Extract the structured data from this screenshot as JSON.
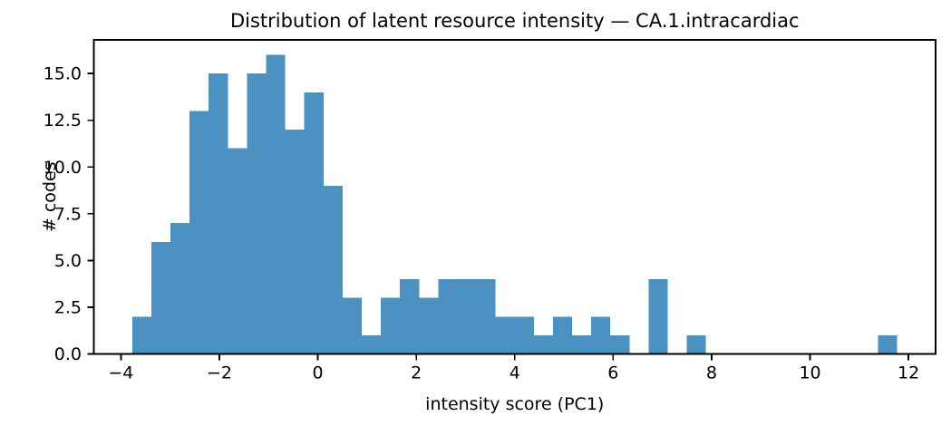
{
  "chart_data": {
    "type": "bar",
    "subtype": "histogram",
    "title": "Distribution of latent resource intensity — CA.1.intracardiac",
    "xlabel": "intensity score (PC1)",
    "ylabel": "# codes",
    "bar_color": "#4b92c3",
    "axis_color": "#000000",
    "background_color": "#ffffff",
    "grid": false,
    "legend": null,
    "bins": {
      "start": -3.77,
      "width": 0.3885,
      "counts": [
        2,
        6,
        7,
        13,
        15,
        11,
        15,
        16,
        12,
        14,
        9,
        3,
        1,
        3,
        4,
        3,
        4,
        4,
        4,
        2,
        2,
        1,
        2,
        1,
        2,
        1,
        0,
        4,
        0,
        1,
        0,
        0,
        0,
        0,
        0,
        0,
        0,
        0,
        0,
        1
      ]
    },
    "total_count": 163,
    "xlim": [
      -4.55,
      12.55
    ],
    "ylim": [
      0,
      16.8
    ],
    "xticks": {
      "values": [
        -4,
        -2,
        0,
        2,
        4,
        6,
        8,
        10,
        12
      ],
      "labels": [
        "−4",
        "−2",
        "0",
        "2",
        "4",
        "6",
        "8",
        "10",
        "12"
      ]
    },
    "yticks": {
      "values": [
        0,
        2.5,
        5,
        7.5,
        10,
        12.5,
        15
      ],
      "labels": [
        "0.0",
        "2.5",
        "5.0",
        "7.5",
        "10.0",
        "12.5",
        "15.0"
      ]
    }
  }
}
